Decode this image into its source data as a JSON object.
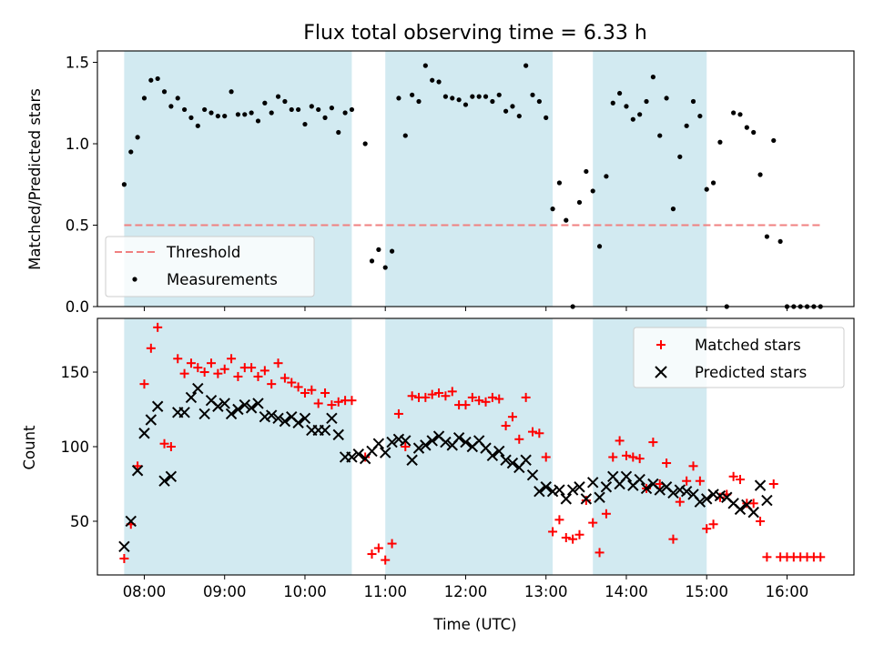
{
  "figure": {
    "title": "Flux total observing time = 6.33 h",
    "xlabel": "Time (UTC)"
  },
  "colors": {
    "shade": "#add8e6",
    "measurement": "#000000",
    "threshold": "#f08080",
    "matched": "#ff0000",
    "predicted": "#000000"
  },
  "chart_data": [
    {
      "type": "scatter",
      "panel": "top",
      "ylabel": "Matched/Predicted stars",
      "xlim": [
        "07:25",
        "16:50"
      ],
      "ylim": [
        0,
        1.57
      ],
      "x_ticks": [
        "08:00",
        "09:00",
        "10:00",
        "11:00",
        "12:00",
        "13:00",
        "14:00",
        "15:00",
        "16:00"
      ],
      "y_ticks": [
        "0.0",
        "0.5",
        "1.0",
        "1.5"
      ],
      "shaded_intervals": [
        [
          "07:45",
          "10:35"
        ],
        [
          "11:00",
          "13:05"
        ],
        [
          "13:35",
          "15:00"
        ]
      ],
      "legend": {
        "position": "lower left",
        "entries": [
          "Threshold",
          "Measurements"
        ]
      },
      "threshold": {
        "name": "Threshold",
        "y": 0.5,
        "x_range": [
          "07:45",
          "16:25"
        ]
      },
      "series": [
        {
          "name": "Measurements",
          "x": [
            "07:45",
            "07:50",
            "07:55",
            "08:00",
            "08:05",
            "08:10",
            "08:15",
            "08:20",
            "08:25",
            "08:30",
            "08:35",
            "08:40",
            "08:45",
            "08:50",
            "08:55",
            "09:00",
            "09:05",
            "09:10",
            "09:15",
            "09:20",
            "09:25",
            "09:30",
            "09:35",
            "09:40",
            "09:45",
            "09:50",
            "09:55",
            "10:00",
            "10:05",
            "10:10",
            "10:15",
            "10:20",
            "10:25",
            "10:30",
            "10:35",
            "10:45",
            "10:50",
            "10:55",
            "11:00",
            "11:05",
            "11:10",
            "11:15",
            "11:20",
            "11:25",
            "11:30",
            "11:35",
            "11:40",
            "11:45",
            "11:50",
            "11:55",
            "12:00",
            "12:05",
            "12:10",
            "12:15",
            "12:20",
            "12:25",
            "12:30",
            "12:35",
            "12:40",
            "12:45",
            "12:50",
            "12:55",
            "13:00",
            "13:05",
            "13:10",
            "13:15",
            "13:20",
            "13:25",
            "13:30",
            "13:35",
            "13:40",
            "13:45",
            "13:50",
            "13:55",
            "14:00",
            "14:05",
            "14:10",
            "14:15",
            "14:20",
            "14:25",
            "14:30",
            "14:35",
            "14:40",
            "14:45",
            "14:50",
            "14:55",
            "15:00",
            "15:05",
            "15:10",
            "15:15",
            "15:20",
            "15:25",
            "15:30",
            "15:35",
            "15:40",
            "15:45",
            "15:50",
            "15:55",
            "16:00",
            "16:05",
            "16:10",
            "16:15",
            "16:20",
            "16:25"
          ],
          "y": [
            0.75,
            0.95,
            1.04,
            1.28,
            1.39,
            1.4,
            1.32,
            1.23,
            1.28,
            1.21,
            1.16,
            1.11,
            1.21,
            1.19,
            1.17,
            1.17,
            1.32,
            1.18,
            1.18,
            1.19,
            1.14,
            1.25,
            1.19,
            1.29,
            1.26,
            1.21,
            1.21,
            1.12,
            1.23,
            1.21,
            1.16,
            1.22,
            1.07,
            1.19,
            1.21,
            1.0,
            0.28,
            0.35,
            0.24,
            0.34,
            1.28,
            1.05,
            1.3,
            1.26,
            1.48,
            1.39,
            1.38,
            1.29,
            1.28,
            1.27,
            1.24,
            1.29,
            1.29,
            1.29,
            1.26,
            1.3,
            1.2,
            1.23,
            1.17,
            1.48,
            1.3,
            1.26,
            1.16,
            0.6,
            0.76,
            0.53,
            0.0,
            0.64,
            0.83,
            0.71,
            0.37,
            0.8,
            1.25,
            1.31,
            1.23,
            1.15,
            1.18,
            1.26,
            1.41,
            1.05,
            1.28,
            0.6,
            0.92,
            1.11,
            1.26,
            1.17,
            0.72,
            0.76,
            1.01,
            0.0,
            1.19,
            1.18,
            1.1,
            1.07,
            0.81,
            0.43,
            1.02,
            0.4,
            0.0,
            0.0,
            0.0,
            0.0,
            0.0,
            0.0
          ]
        }
      ]
    },
    {
      "type": "scatter",
      "panel": "bottom",
      "ylabel": "Count",
      "xlabel": "Time (UTC)",
      "xlim": [
        "07:25",
        "16:50"
      ],
      "ylim": [
        14,
        186
      ],
      "x_ticks": [
        "08:00",
        "09:00",
        "10:00",
        "11:00",
        "12:00",
        "13:00",
        "14:00",
        "15:00",
        "16:00"
      ],
      "y_ticks": [
        "50",
        "100",
        "150"
      ],
      "shaded_intervals": [
        [
          "07:45",
          "10:35"
        ],
        [
          "11:00",
          "13:05"
        ],
        [
          "13:35",
          "15:00"
        ]
      ],
      "legend": {
        "position": "upper right",
        "entries": [
          "Matched stars",
          "Predicted stars"
        ]
      },
      "series": [
        {
          "name": "Matched stars",
          "marker": "plus",
          "x": [
            "07:45",
            "07:50",
            "07:55",
            "08:00",
            "08:05",
            "08:10",
            "08:15",
            "08:20",
            "08:25",
            "08:30",
            "08:35",
            "08:40",
            "08:45",
            "08:50",
            "08:55",
            "09:00",
            "09:05",
            "09:10",
            "09:15",
            "09:20",
            "09:25",
            "09:30",
            "09:35",
            "09:40",
            "09:45",
            "09:50",
            "09:55",
            "10:00",
            "10:05",
            "10:10",
            "10:15",
            "10:20",
            "10:25",
            "10:30",
            "10:35",
            "10:45",
            "10:50",
            "10:55",
            "11:00",
            "11:05",
            "11:10",
            "11:15",
            "11:20",
            "11:25",
            "11:30",
            "11:35",
            "11:40",
            "11:45",
            "11:50",
            "11:55",
            "12:00",
            "12:05",
            "12:10",
            "12:15",
            "12:20",
            "12:25",
            "12:30",
            "12:35",
            "12:40",
            "12:45",
            "12:50",
            "12:55",
            "13:00",
            "13:05",
            "13:10",
            "13:15",
            "13:20",
            "13:25",
            "13:30",
            "13:35",
            "13:40",
            "13:45",
            "13:50",
            "13:55",
            "14:00",
            "14:05",
            "14:10",
            "14:15",
            "14:20",
            "14:25",
            "14:30",
            "14:35",
            "14:40",
            "14:45",
            "14:50",
            "14:55",
            "15:00",
            "15:05",
            "15:10",
            "15:15",
            "15:20",
            "15:25",
            "15:30",
            "15:35",
            "15:40",
            "15:45",
            "15:50",
            "15:55",
            "16:00",
            "16:05",
            "16:10",
            "16:15",
            "16:20",
            "16:25"
          ],
          "y": [
            25,
            48,
            87,
            142,
            166,
            180,
            102,
            100,
            159,
            149,
            156,
            153,
            150,
            156,
            149,
            152,
            159,
            147,
            153,
            153,
            147,
            151,
            142,
            156,
            146,
            143,
            140,
            136,
            138,
            129,
            136,
            128,
            130,
            131,
            131,
            93,
            28,
            32,
            24,
            35,
            122,
            100,
            134,
            133,
            133,
            135,
            136,
            134,
            137,
            128,
            128,
            133,
            131,
            130,
            133,
            132,
            114,
            120,
            105,
            133,
            110,
            109,
            93,
            43,
            51,
            39,
            38,
            41,
            64,
            49,
            29,
            55,
            93,
            104,
            94,
            93,
            92,
            72,
            103,
            75,
            89,
            38,
            63,
            77,
            87,
            77,
            45,
            48,
            66,
            68,
            80,
            78,
            62,
            62,
            50,
            26,
            75,
            26,
            26,
            26,
            26,
            26,
            26,
            26
          ]
        },
        {
          "name": "Predicted stars",
          "marker": "x",
          "x": [
            "07:45",
            "07:50",
            "07:55",
            "08:00",
            "08:05",
            "08:10",
            "08:15",
            "08:20",
            "08:25",
            "08:30",
            "08:35",
            "08:40",
            "08:45",
            "08:50",
            "08:55",
            "09:00",
            "09:05",
            "09:10",
            "09:15",
            "09:20",
            "09:25",
            "09:30",
            "09:35",
            "09:40",
            "09:45",
            "09:50",
            "09:55",
            "10:00",
            "10:05",
            "10:10",
            "10:15",
            "10:20",
            "10:25",
            "10:30",
            "10:35",
            "10:40",
            "10:45",
            "10:50",
            "10:55",
            "11:00",
            "11:05",
            "11:10",
            "11:15",
            "11:20",
            "11:25",
            "11:30",
            "11:35",
            "11:40",
            "11:45",
            "11:50",
            "11:55",
            "12:00",
            "12:05",
            "12:10",
            "12:15",
            "12:20",
            "12:25",
            "12:30",
            "12:35",
            "12:40",
            "12:45",
            "12:50",
            "12:55",
            "13:00",
            "13:05",
            "13:10",
            "13:15",
            "13:20",
            "13:25",
            "13:30",
            "13:35",
            "13:40",
            "13:45",
            "13:50",
            "13:55",
            "14:00",
            "14:05",
            "14:10",
            "14:15",
            "14:20",
            "14:25",
            "14:30",
            "14:35",
            "14:40",
            "14:45",
            "14:50",
            "14:55",
            "15:00",
            "15:05",
            "15:10",
            "15:15",
            "15:20",
            "15:25",
            "15:30",
            "15:35",
            "15:40",
            "15:45"
          ],
          "y": [
            33,
            50,
            84,
            109,
            118,
            127,
            77,
            80,
            123,
            123,
            133,
            139,
            122,
            131,
            127,
            129,
            122,
            125,
            128,
            126,
            129,
            120,
            121,
            119,
            117,
            120,
            116,
            119,
            111,
            111,
            111,
            119,
            108,
            93,
            93,
            95,
            92,
            97,
            102,
            96,
            103,
            105,
            104,
            91,
            99,
            101,
            104,
            107,
            103,
            101,
            106,
            103,
            100,
            104,
            99,
            94,
            97,
            91,
            89,
            86,
            91,
            81,
            70,
            73,
            70,
            71,
            65,
            71,
            73,
            65,
            76,
            66,
            73,
            80,
            75,
            80,
            74,
            78,
            72,
            75,
            71,
            73,
            69,
            71,
            70,
            68,
            63,
            65,
            68,
            67,
            66,
            62,
            58,
            61,
            56,
            74,
            64
          ]
        }
      ]
    }
  ]
}
